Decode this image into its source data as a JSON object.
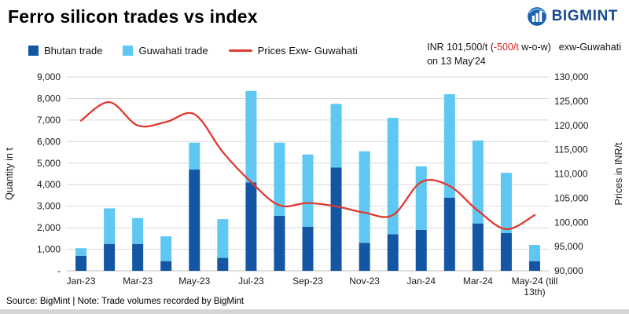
{
  "page": {
    "title": "Ferro silicon trades vs index",
    "logo_text": "BIGMINT",
    "footer": "Source: BigMint | Note: Trade volumes recorded by BigMint"
  },
  "colors": {
    "bhutan": "#1356a4",
    "guwahati": "#5fc8f2",
    "price_line": "#e0392f",
    "grid": "#d9d9d9",
    "axis_line": "#bfbfbf",
    "negative": "#e02020",
    "logo_blue": "#17498f"
  },
  "legend": {
    "items": [
      {
        "label": "Bhutan trade",
        "color": "#1356a4",
        "marker": "square"
      },
      {
        "label": "Guwahati trade",
        "color": "#5fc8f2",
        "marker": "square"
      },
      {
        "label": "Prices Exw- Guwahati",
        "color": "#e0392f",
        "marker": "line"
      }
    ]
  },
  "annotation": {
    "prefix": "INR 101,500/t (",
    "delta": "-500/t",
    "suffix": " w-o-w)",
    "region": "exw-Guwahati",
    "line2": "on 13 May'24"
  },
  "chart_data": {
    "type": "bar",
    "subtype": "stacked-bars-with-line-overlay",
    "categories": [
      "Jan-23",
      "Feb-23",
      "Mar-23",
      "Apr-23",
      "May-23",
      "Jun-23",
      "Jul-23",
      "Aug-23",
      "Sep-23",
      "Oct-23",
      "Nov-23",
      "Dec-23",
      "Jan-24",
      "Feb-24",
      "Mar-24",
      "Apr-24",
      "May-24"
    ],
    "series": [
      {
        "name": "Bhutan trade",
        "type": "bar",
        "axis": "left",
        "values": [
          700,
          1250,
          1250,
          450,
          4700,
          600,
          4100,
          2550,
          2050,
          4800,
          1300,
          1700,
          1900,
          3400,
          2200,
          1750,
          450
        ]
      },
      {
        "name": "Guwahati trade",
        "type": "bar-stacked-segment",
        "axis": "left",
        "values": [
          350,
          1650,
          1200,
          1150,
          1250,
          1800,
          4250,
          3400,
          3350,
          2950,
          4250,
          5400,
          2950,
          4800,
          3850,
          2800,
          750
        ]
      },
      {
        "name": "Prices Exw- Guwahati",
        "type": "line",
        "axis": "right",
        "values": [
          121000,
          124800,
          120000,
          120700,
          122300,
          114500,
          108300,
          103500,
          104000,
          103300,
          102000,
          101500,
          108300,
          107500,
          102400,
          98600,
          101500
        ]
      }
    ],
    "left_axis": {
      "title": "Quantity in t",
      "min": 0,
      "max": 9000,
      "ticks": [
        "9,000",
        "8,000",
        "7,000",
        "6,000",
        "5,000",
        "4,000",
        "3,000",
        "2,000",
        "1,000",
        "-"
      ]
    },
    "right_axis": {
      "title": "Prices in INR/t",
      "min": 90000,
      "max": 130000,
      "ticks": [
        "130,000",
        "125,000",
        "120,000",
        "115,000",
        "110,000",
        "105,000",
        "100,000",
        "95,000",
        "90,000"
      ]
    },
    "x_tick_labels": [
      "Jan-23",
      "Mar-23",
      "May-23",
      "Jul-23",
      "Sep-23",
      "Nov-23",
      "Jan-24",
      "Mar-24",
      "May-24 (till\n13th)"
    ],
    "grid": "horizontal-only",
    "legend_position": "top-left"
  }
}
